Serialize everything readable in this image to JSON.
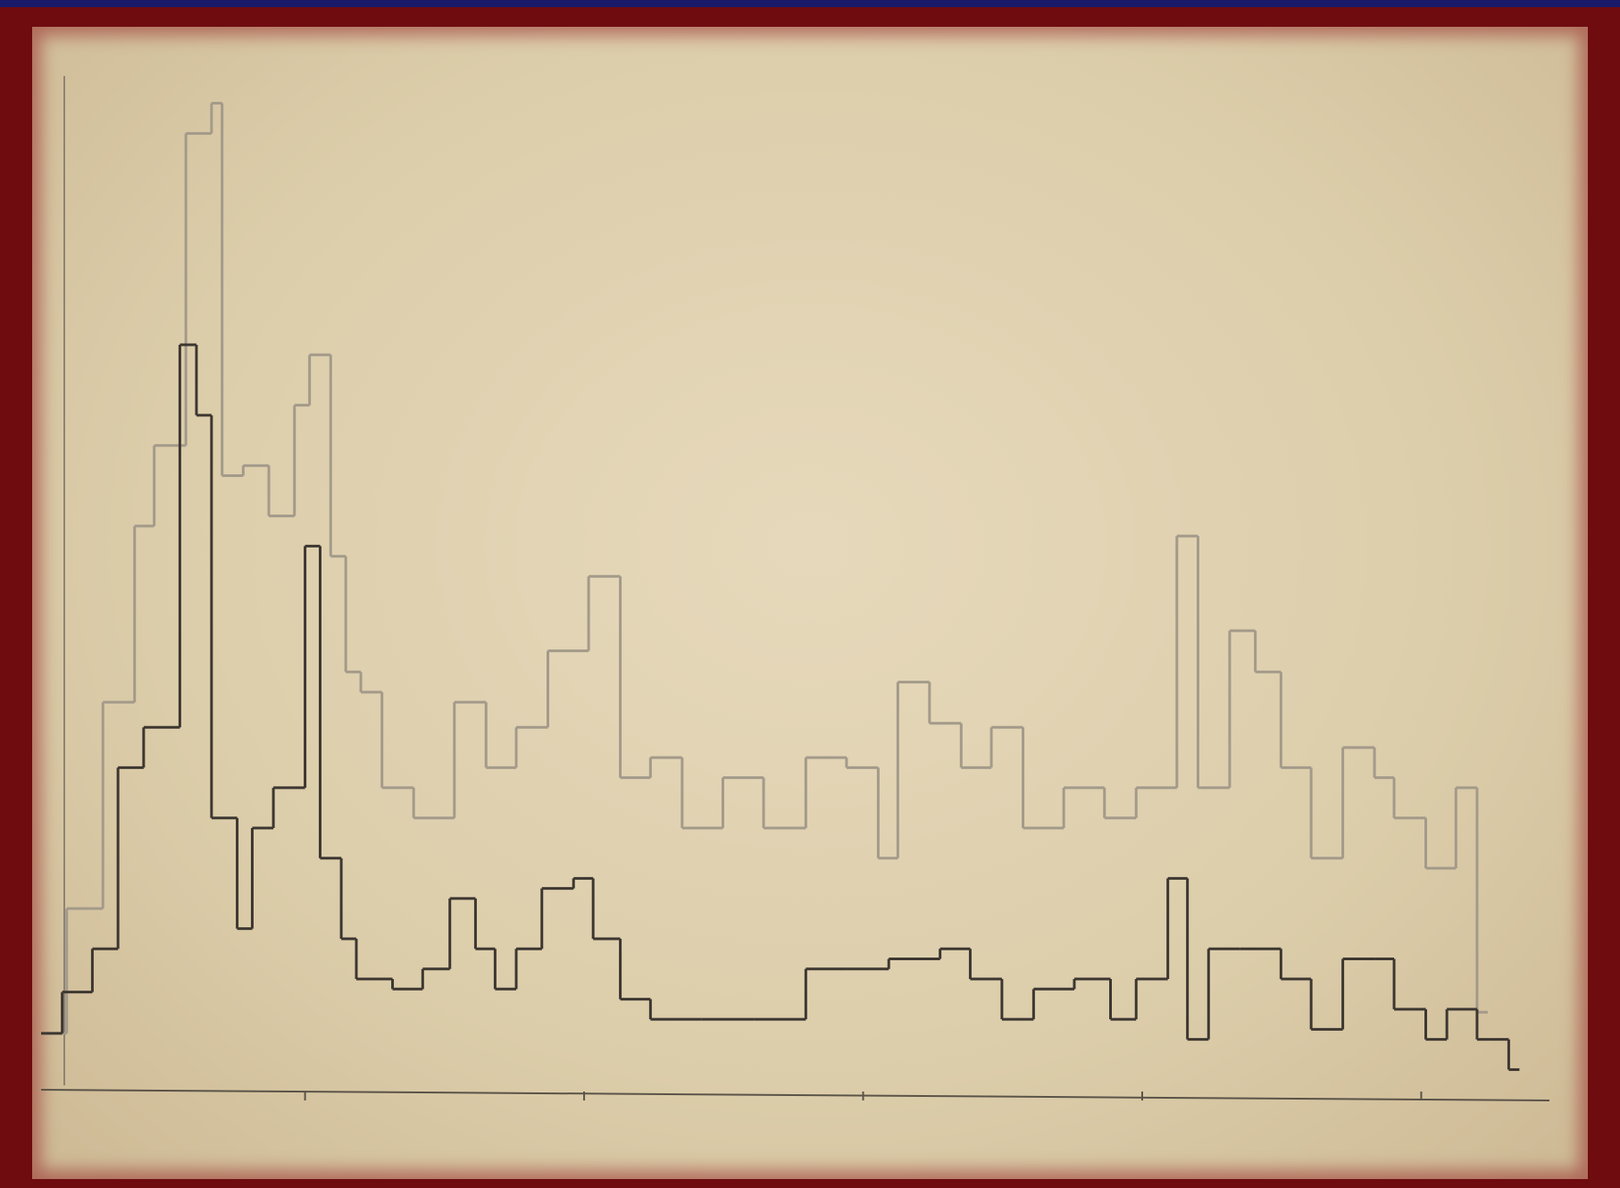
{
  "chart_data": {
    "type": "step",
    "xlim": [
      0,
      100
    ],
    "ylim": [
      0,
      100
    ],
    "xticks": [
      17.5,
      36,
      54.5,
      73,
      91.5
    ],
    "series": [
      {
        "color": "#a39a8a",
        "x": [
          0,
          1.7,
          4.1,
          6.2,
          7.5,
          9.6,
          11.3,
          12,
          13.4,
          15.1,
          16.8,
          17.8,
          19.2,
          20.2,
          21.2,
          22.6,
          24.7,
          27.4,
          29.5,
          31.5,
          33.6,
          36.3,
          38.4,
          40.4,
          42.5,
          45.2,
          47.9,
          50.7,
          53.4,
          55.5,
          56.8,
          58.9,
          61,
          63,
          65.1,
          67.8,
          70.5,
          72.6,
          75.3,
          76.7,
          78.8,
          80.5,
          82.2,
          84.2,
          86.3,
          88.4,
          89.7,
          91.8,
          93.8,
          95.2
        ],
        "values": [
          5.6,
          18,
          38.5,
          56,
          64,
          95,
          98,
          61,
          62,
          57,
          68,
          73,
          53,
          41.5,
          39.5,
          30,
          27,
          38.5,
          32,
          36,
          43.6,
          51,
          31,
          33,
          26,
          31,
          26,
          33,
          32,
          23,
          40.5,
          36.4,
          32,
          36,
          26,
          30,
          27,
          30,
          55,
          30,
          45.6,
          41.5,
          32,
          23,
          34,
          31,
          27,
          22,
          30,
          7.7
        ]
      },
      {
        "color": "#3d3731",
        "x": [
          0,
          1.4,
          3.4,
          5.1,
          6.8,
          9.2,
          10.3,
          11.3,
          13,
          14,
          15.4,
          17.5,
          18.5,
          19.9,
          20.9,
          23.3,
          25.3,
          27.1,
          28.8,
          30.1,
          31.5,
          33.2,
          35.3,
          36.6,
          38.4,
          40.4,
          43.8,
          47.3,
          50.7,
          53.4,
          56.2,
          59.6,
          61.6,
          63.7,
          65.8,
          68.5,
          70.9,
          72.6,
          74.7,
          76,
          77.4,
          79.5,
          82.2,
          84.2,
          86.3,
          88.4,
          89.7,
          91.8,
          93.2,
          95.2,
          97.3
        ],
        "values": [
          5.6,
          9.7,
          14,
          32,
          36,
          74,
          67,
          27,
          16,
          26,
          30,
          54,
          23,
          15,
          11,
          10,
          12,
          19,
          14,
          10,
          14,
          20,
          21,
          15,
          9,
          7,
          7,
          7,
          12,
          12,
          13,
          14,
          11,
          7,
          10,
          11,
          7,
          11,
          21,
          5,
          14,
          14,
          11,
          6,
          13,
          13,
          8,
          5,
          8,
          5,
          2
        ]
      }
    ]
  }
}
